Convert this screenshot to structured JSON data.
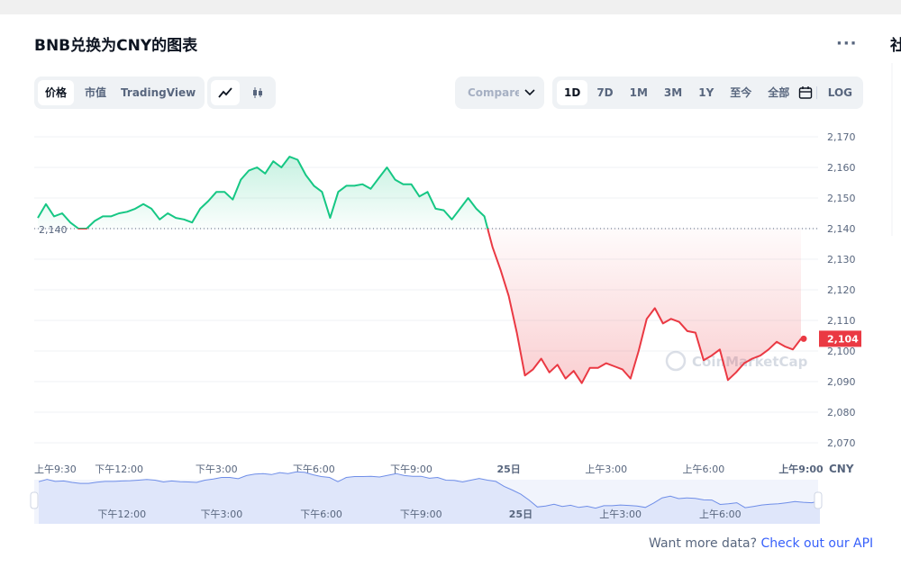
{
  "header": {
    "title": "BNB兑换为CNY的图表",
    "sidebar_fragment": "社"
  },
  "toolbar": {
    "tabs": [
      "价格",
      "市值",
      "TradingView"
    ],
    "compare": "Compare with",
    "ranges": [
      "1D",
      "7D",
      "1M",
      "3M",
      "1Y",
      "至今",
      "全部"
    ],
    "log": "LOG"
  },
  "chart_data": {
    "type": "line",
    "x": [
      "上午9:30",
      "上午9:45",
      "上午10:00",
      "上午10:15",
      "上午10:30",
      "上午10:45",
      "上午11:00",
      "上午11:15",
      "上午11:30",
      "上午11:45",
      "下午12:00",
      "下午12:15",
      "下午12:30",
      "下午12:45",
      "下午1:00",
      "下午1:15",
      "下午1:30",
      "下午1:45",
      "下午2:00",
      "下午2:15",
      "下午2:30",
      "下午2:45",
      "下午3:00",
      "下午3:15",
      "下午3:30",
      "下午3:45",
      "下午4:00",
      "下午4:15",
      "下午4:30",
      "下午4:45",
      "下午5:00",
      "下午5:15",
      "下午5:30",
      "下午5:45",
      "下午6:00",
      "下午6:15",
      "下午6:30",
      "下午6:45",
      "下午7:00",
      "下午7:15",
      "下午7:30",
      "下午7:45",
      "下午8:00",
      "下午8:15",
      "下午8:30",
      "下午8:45",
      "下午9:00",
      "下午9:15",
      "下午9:30",
      "下午9:45",
      "下午10:00",
      "下午10:15",
      "下午10:30",
      "下午10:45",
      "下午11:00",
      "下午11:15",
      "下午11:30",
      "下午11:45",
      "25日",
      "上午12:15",
      "上午12:30",
      "上午12:45",
      "上午1:00",
      "上午1:15",
      "上午1:30",
      "上午1:45",
      "上午2:00",
      "上午2:15",
      "上午2:30",
      "上午2:45",
      "上午3:00",
      "上午3:15",
      "上午3:30",
      "上午3:45",
      "上午4:00",
      "上午4:15",
      "上午4:30",
      "上午4:45",
      "上午5:00",
      "上午5:15",
      "上午5:30",
      "上午5:45",
      "上午6:00",
      "上午6:15",
      "上午6:30",
      "上午6:45",
      "上午7:00",
      "上午7:15",
      "上午7:30",
      "上午7:45",
      "上午8:00",
      "上午8:15",
      "上午8:30",
      "上午8:45",
      "上午9:00"
    ],
    "values": [
      2143.5,
      2148,
      2144,
      2145,
      2142,
      2140,
      2140,
      2142.5,
      2144,
      2144,
      2145,
      2145.5,
      2146.5,
      2148,
      2146.5,
      2143,
      2145,
      2143.5,
      2143,
      2142,
      2146.5,
      2149,
      2152,
      2152,
      2149.5,
      2156,
      2159,
      2160,
      2158,
      2162,
      2160,
      2163.5,
      2162.5,
      2157.5,
      2154,
      2152,
      2143.5,
      2152,
      2154,
      2154,
      2154.5,
      2153,
      2156.5,
      2160,
      2156,
      2154.5,
      2154.5,
      2150.5,
      2152,
      2146.5,
      2146,
      2143,
      2146.5,
      2150,
      2146.5,
      2144,
      2134,
      2126.5,
      2118,
      2106,
      2092,
      2094,
      2097.5,
      2093,
      2095.5,
      2091,
      2093.5,
      2089.5,
      2094.5,
      2094.5,
      2096,
      2095,
      2094,
      2091,
      2100,
      2110.5,
      2114,
      2109,
      2110.5,
      2109.5,
      2106.5,
      2106,
      2097,
      2098.5,
      2100.5,
      2090.5,
      2093,
      2096,
      2097.5,
      2098.5,
      2100.5,
      2103,
      2101.5,
      2100.5,
      2104
    ],
    "xticks": [
      "上午9:30",
      "下午12:00",
      "下午3:00",
      "下午6:00",
      "下午9:00",
      "25日",
      "上午3:00",
      "上午6:00",
      "上午9:00"
    ],
    "ylim": [
      2065,
      2175
    ],
    "yticks": [
      {
        "value": 2070,
        "label": "2,070"
      },
      {
        "value": 2080,
        "label": "2,080"
      },
      {
        "value": 2090,
        "label": "2,090"
      },
      {
        "value": 2100,
        "label": "2,100"
      },
      {
        "value": 2110,
        "label": "2,110"
      },
      {
        "value": 2120,
        "label": "2,120"
      },
      {
        "value": 2130,
        "label": "2,130"
      },
      {
        "value": 2140,
        "label": "2,140"
      },
      {
        "value": 2150,
        "label": "2,150"
      },
      {
        "value": 2160,
        "label": "2,160"
      },
      {
        "value": 2170,
        "label": "2,170"
      }
    ],
    "y_unit": "CNY",
    "baseline": {
      "value": 2140,
      "label": "2,140"
    },
    "price_tag": {
      "value": 2104,
      "label": "2,104"
    },
    "up_color": "#16c784",
    "down_color": "#ea3943",
    "navigator_color": "#6f8ee8",
    "grid": true,
    "watermark": "CoinMarketCap"
  },
  "footer": {
    "text": "Want more data?",
    "link": "Check out our API"
  }
}
